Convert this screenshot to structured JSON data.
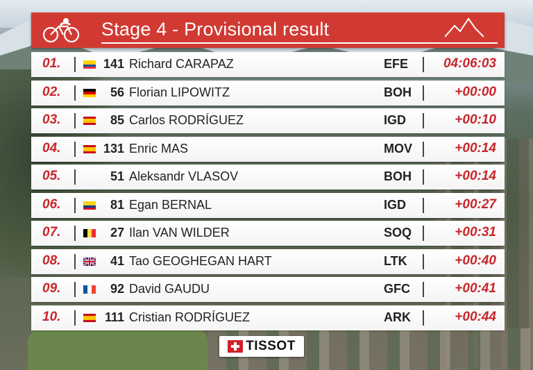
{
  "header": {
    "title": "Stage 4 - Provisional result",
    "logo_icon": "cyclist-logo-icon",
    "decor_icon": "mountain-peaks-icon"
  },
  "colors": {
    "accent_red": "#d13a32",
    "position_red": "#c8262b"
  },
  "results": [
    {
      "pos": "01.",
      "flag": "ecuador-flag",
      "bib": "141",
      "name": "Richard CARAPAZ",
      "team": "EFE",
      "time": "04:06:03"
    },
    {
      "pos": "02.",
      "flag": "germany-flag",
      "bib": "56",
      "name": "Florian LIPOWITZ",
      "team": "BOH",
      "time": "+00:00"
    },
    {
      "pos": "03.",
      "flag": "spain-flag",
      "bib": "85",
      "name": "Carlos RODRÍGUEZ",
      "team": "IGD",
      "time": "+00:10"
    },
    {
      "pos": "04.",
      "flag": "spain-flag",
      "bib": "131",
      "name": "Enric MAS",
      "team": "MOV",
      "time": "+00:14"
    },
    {
      "pos": "05.",
      "flag": "",
      "bib": "51",
      "name": "Aleksandr VLASOV",
      "team": "BOH",
      "time": "+00:14"
    },
    {
      "pos": "06.",
      "flag": "colombia-flag",
      "bib": "81",
      "name": "Egan BERNAL",
      "team": "IGD",
      "time": "+00:27"
    },
    {
      "pos": "07.",
      "flag": "belgium-flag",
      "bib": "27",
      "name": "Ilan VAN WILDER",
      "team": "SOQ",
      "time": "+00:31"
    },
    {
      "pos": "08.",
      "flag": "uk-flag",
      "bib": "41",
      "name": "Tao GEOGHEGAN HART",
      "team": "LTK",
      "time": "+00:40"
    },
    {
      "pos": "09.",
      "flag": "france-flag",
      "bib": "92",
      "name": "David GAUDU",
      "team": "GFC",
      "time": "+00:41"
    },
    {
      "pos": "10.",
      "flag": "spain-flag",
      "bib": "111",
      "name": "Cristian RODRÍGUEZ",
      "team": "ARK",
      "time": "+00:44"
    }
  ],
  "sponsor": {
    "name": "TISSOT",
    "icon": "tissot-cross-icon"
  }
}
